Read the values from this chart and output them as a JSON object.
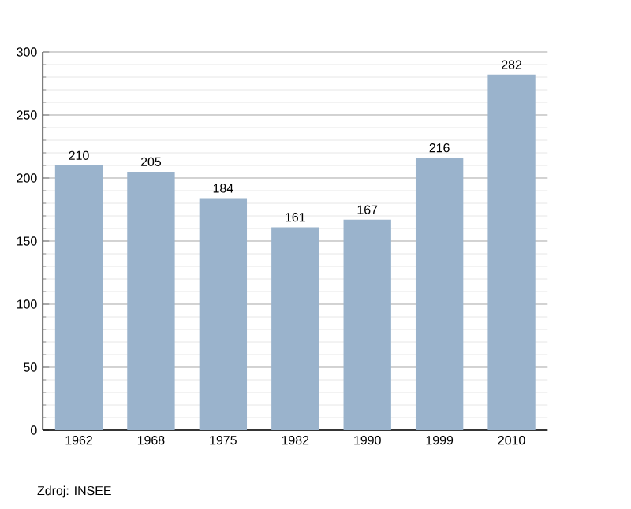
{
  "chart_data": {
    "type": "bar",
    "categories": [
      "1962",
      "1968",
      "1975",
      "1982",
      "1990",
      "1999",
      "2010"
    ],
    "values": [
      210,
      205,
      184,
      161,
      167,
      216,
      282
    ],
    "color": "#9ab3cc",
    "ylim": [
      0,
      300
    ],
    "yticks": [
      0,
      50,
      100,
      150,
      200,
      250,
      300
    ],
    "grid": "y",
    "data_labels": true,
    "annotations": [
      "Zdroj: INSEE"
    ]
  }
}
